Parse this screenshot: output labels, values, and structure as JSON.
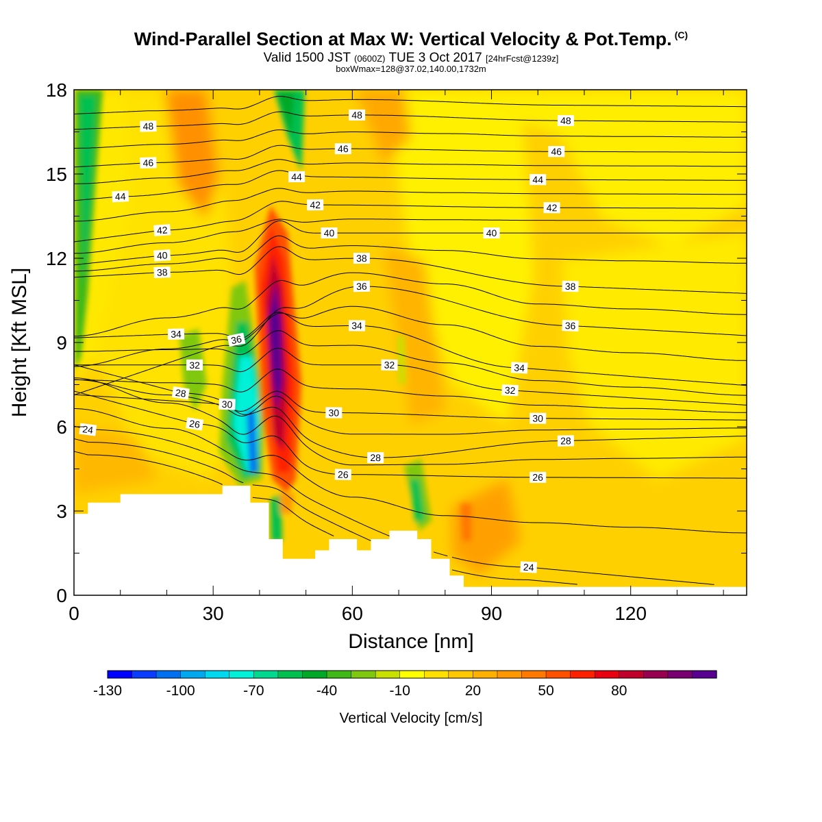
{
  "chart_data": {
    "type": "heatmap",
    "title": "Wind-Parallel Section at Max W: Vertical Velocity & Pot.Temp.",
    "title_mark": "(C)",
    "subtitle_main": "Valid 1500 JST",
    "subtitle_utc": "(0600Z)",
    "subtitle_date": "TUE 3 Oct 2017",
    "subtitle_fcst": "[24hrFcst@1239z]",
    "annotation": "boxWmax=128@37.02,140.00,1732m",
    "xlabel": "Distance [nm]",
    "ylabel": "Height [Kft MSL]",
    "xlim": [
      0,
      145
    ],
    "ylim": [
      0,
      18
    ],
    "x_ticks": [
      "0",
      "30",
      "60",
      "90",
      "120"
    ],
    "y_ticks": [
      "0",
      "3",
      "6",
      "9",
      "12",
      "15",
      "18"
    ],
    "colorbar": {
      "label": "Vertical Velocity [cm/s]",
      "tick_labels": [
        "-130",
        "-100",
        "-70",
        "-40",
        "-10",
        "20",
        "50",
        "80"
      ],
      "colors": [
        "#0000ff",
        "#0a3cff",
        "#0070f0",
        "#00a8f0",
        "#00d8f0",
        "#00f0d8",
        "#00d890",
        "#00c050",
        "#00a828",
        "#40b818",
        "#80c810",
        "#c8e000",
        "#ffff00",
        "#ffe000",
        "#ffc800",
        "#ffb000",
        "#ff9800",
        "#ff7800",
        "#ff5000",
        "#ff2000",
        "#e80010",
        "#c0002a",
        "#980050",
        "#780070",
        "#580090"
      ]
    },
    "vertical_velocity_features": [
      {
        "kind": "updraft",
        "x": 44,
        "y_bottom": 3.5,
        "y_top": 14.5,
        "max": 110
      },
      {
        "kind": "downdraft",
        "x": 38,
        "y_bottom": 3.8,
        "y_top": 10.0,
        "min": -110
      },
      {
        "kind": "updraft",
        "x": 26,
        "y_bottom": 12,
        "y_top": 18,
        "max": 35
      },
      {
        "kind": "downdraft",
        "x": 4,
        "y_bottom": 9,
        "y_top": 18,
        "min": -45
      },
      {
        "kind": "downdraft",
        "x": 47,
        "y_bottom": 14,
        "y_top": 18,
        "min": -45
      },
      {
        "kind": "downdraft",
        "x": 73,
        "y_bottom": 2,
        "y_top": 4.5,
        "min": -40
      },
      {
        "kind": "updraft",
        "x": 84,
        "y_bottom": 1.5,
        "y_top": 4,
        "max": 35
      }
    ],
    "terrain": [
      [
        0,
        2.9
      ],
      [
        3,
        2.9
      ],
      [
        3,
        3.3
      ],
      [
        10,
        3.3
      ],
      [
        10,
        3.6
      ],
      [
        32,
        3.6
      ],
      [
        32,
        3.9
      ],
      [
        38,
        3.9
      ],
      [
        38,
        3.3
      ],
      [
        42,
        3.3
      ],
      [
        42,
        2.0
      ],
      [
        45,
        2.0
      ],
      [
        45,
        1.3
      ],
      [
        52,
        1.3
      ],
      [
        52,
        1.6
      ],
      [
        55,
        1.6
      ],
      [
        55,
        2.0
      ],
      [
        61,
        2.0
      ],
      [
        61,
        1.6
      ],
      [
        64,
        1.6
      ],
      [
        64,
        2.0
      ],
      [
        68,
        2.0
      ],
      [
        68,
        2.3
      ],
      [
        74,
        2.3
      ],
      [
        74,
        2.0
      ],
      [
        77,
        2.0
      ],
      [
        77,
        1.3
      ],
      [
        81,
        1.3
      ],
      [
        81,
        0.7
      ],
      [
        84,
        0.7
      ],
      [
        84,
        0.3
      ],
      [
        145,
        0.3
      ]
    ],
    "theta_contours": [
      {
        "value": 24,
        "label_positions": [
          [
            3,
            5.9
          ],
          [
            98,
            1.0
          ]
        ]
      },
      {
        "value": 26,
        "label_positions": [
          [
            26,
            6.1
          ],
          [
            58,
            4.3
          ],
          [
            100,
            4.2
          ]
        ]
      },
      {
        "value": 28,
        "label_positions": [
          [
            23,
            7.2
          ],
          [
            65,
            4.9
          ],
          [
            106,
            5.5
          ]
        ]
      },
      {
        "value": 30,
        "label_positions": [
          [
            33,
            6.8
          ],
          [
            56,
            6.5
          ],
          [
            100,
            6.3
          ]
        ]
      },
      {
        "value": 32,
        "label_positions": [
          [
            26,
            8.2
          ],
          [
            68,
            8.2
          ],
          [
            94,
            7.3
          ]
        ]
      },
      {
        "value": 34,
        "label_positions": [
          [
            22,
            9.3
          ],
          [
            61,
            9.6
          ],
          [
            96,
            8.1
          ]
        ]
      },
      {
        "value": 36,
        "label_positions": [
          [
            35,
            9.1
          ],
          [
            62,
            11.0
          ],
          [
            107,
            9.6
          ]
        ]
      },
      {
        "value": 38,
        "label_positions": [
          [
            19,
            11.5
          ],
          [
            62,
            12.0
          ],
          [
            107,
            11.0
          ]
        ]
      },
      {
        "value": 40,
        "label_positions": [
          [
            19,
            12.1
          ],
          [
            55,
            12.9
          ],
          [
            90,
            12.9
          ]
        ]
      },
      {
        "value": 42,
        "label_positions": [
          [
            19,
            13.0
          ],
          [
            52,
            13.9
          ],
          [
            103,
            13.8
          ]
        ]
      },
      {
        "value": 44,
        "label_positions": [
          [
            10,
            14.2
          ],
          [
            48,
            14.9
          ],
          [
            100,
            14.8
          ]
        ]
      },
      {
        "value": 46,
        "label_positions": [
          [
            16,
            15.4
          ],
          [
            58,
            15.9
          ],
          [
            104,
            15.8
          ]
        ]
      },
      {
        "value": 48,
        "label_positions": [
          [
            16,
            16.7
          ],
          [
            61,
            17.1
          ],
          [
            106,
            16.9
          ]
        ]
      }
    ]
  }
}
